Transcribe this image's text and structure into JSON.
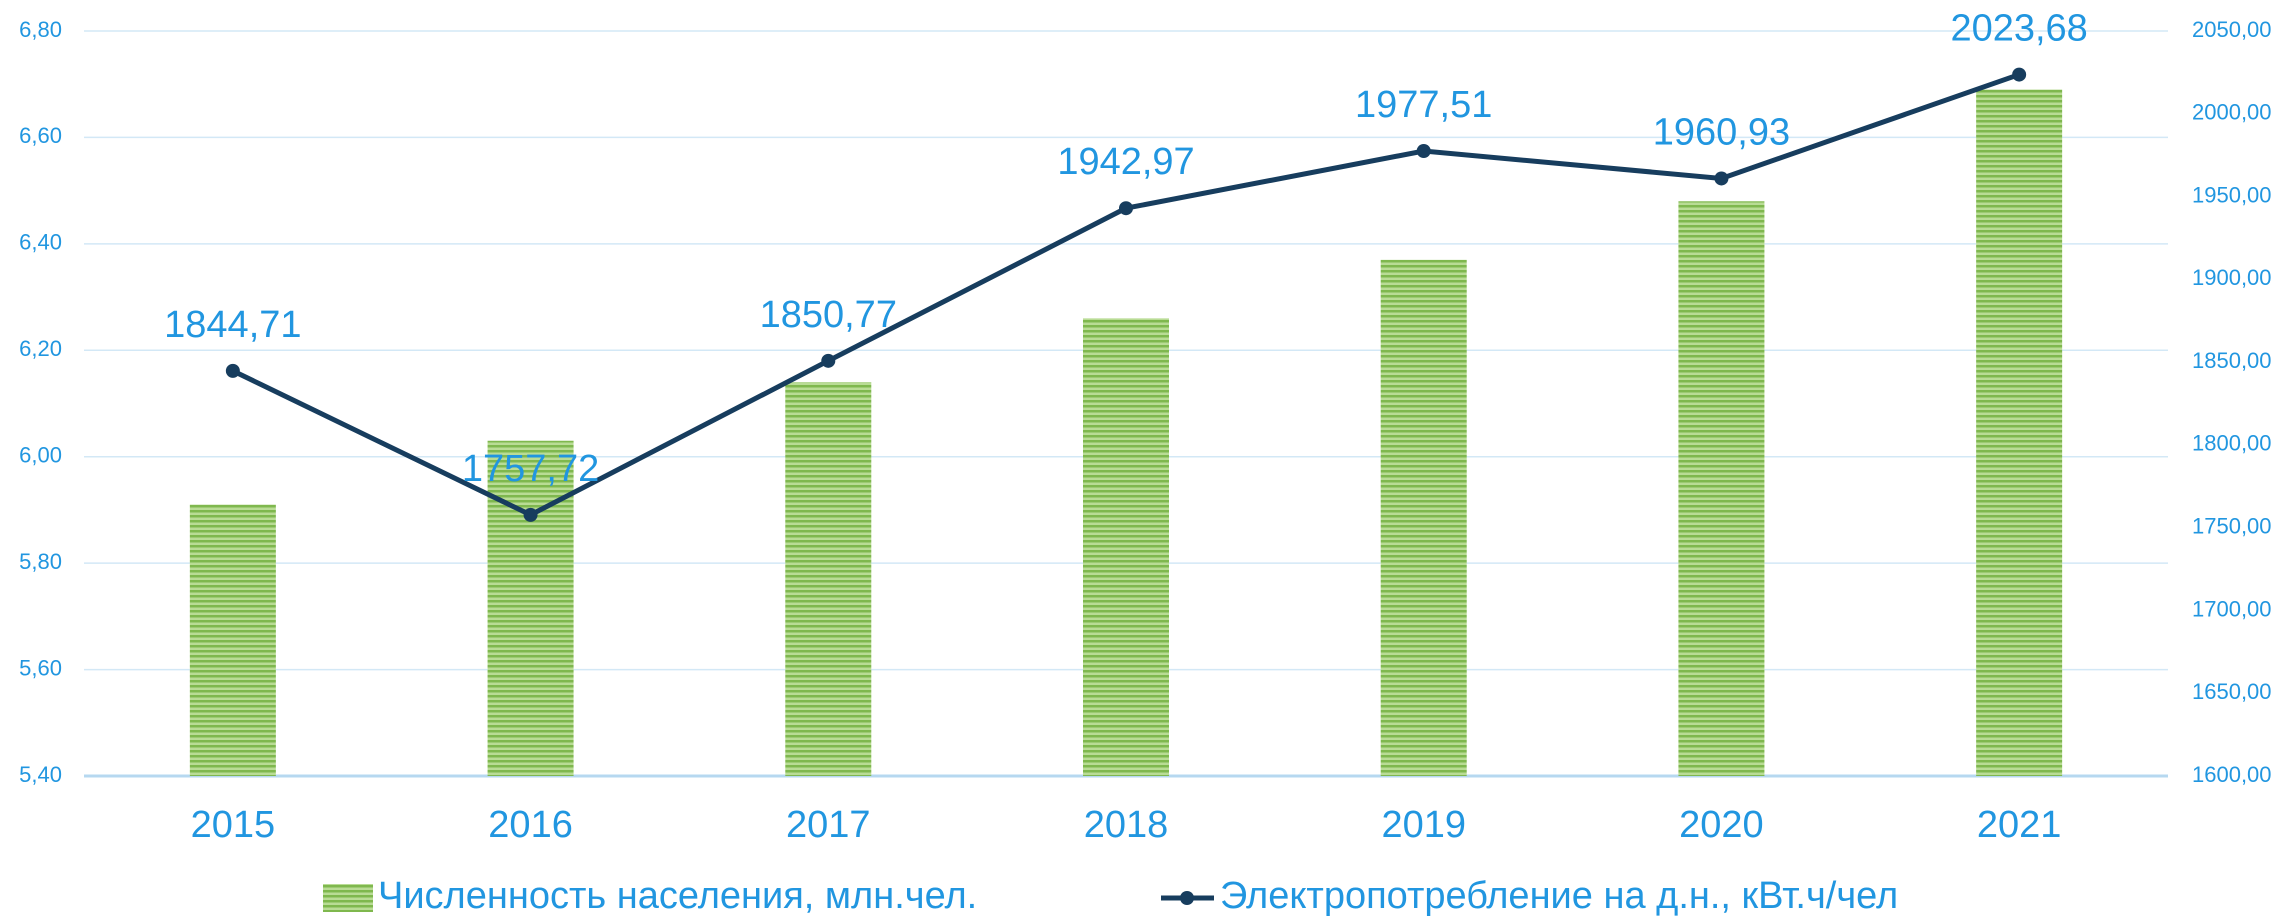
{
  "chart_data": {
    "type": "bar_line",
    "categories": [
      "2015",
      "2016",
      "2017",
      "2018",
      "2019",
      "2020",
      "2021"
    ],
    "series": [
      {
        "name": "Численность населения, млн.чел.",
        "color": "#8cc45a",
        "axis": "y",
        "type": "bar",
        "values": [
          5.91,
          6.03,
          6.14,
          6.26,
          6.37,
          6.48,
          6.69
        ]
      },
      {
        "name": "Электропотребление на д.н., кВт.ч/чел",
        "color": "#173d5e",
        "axis": "y2",
        "type": "line",
        "values": [
          1844.71,
          1757.72,
          1850.77,
          1942.97,
          1977.51,
          1960.93,
          2023.68
        ],
        "value_labels": [
          "1844,71",
          "1757,72",
          "1850,77",
          "1942,97",
          "1977,51",
          "1960,93",
          "2023,68"
        ]
      }
    ],
    "ylim": [
      5.4,
      6.8
    ],
    "yticks": [
      {
        "value": 5.4,
        "label": "5,40"
      },
      {
        "value": 5.6,
        "label": "5,60"
      },
      {
        "value": 5.8,
        "label": "5,80"
      },
      {
        "value": 6.0,
        "label": "6,00"
      },
      {
        "value": 6.2,
        "label": "6,20"
      },
      {
        "value": 6.4,
        "label": "6,40"
      },
      {
        "value": 6.6,
        "label": "6,60"
      },
      {
        "value": 6.8,
        "label": "6,80"
      }
    ],
    "y2lim": [
      1600,
      2050
    ],
    "y2ticks": [
      {
        "value": 1600,
        "label": "1600,00"
      },
      {
        "value": 1650,
        "label": "1650,00"
      },
      {
        "value": 1700,
        "label": "1700,00"
      },
      {
        "value": 1750,
        "label": "1750,00"
      },
      {
        "value": 1800,
        "label": "1800,00"
      },
      {
        "value": 1850,
        "label": "1850,00"
      },
      {
        "value": 1900,
        "label": "1900,00"
      },
      {
        "value": 1950,
        "label": "1950,00"
      },
      {
        "value": 2000,
        "label": "2000,00"
      },
      {
        "value": 2050,
        "label": "2050,00"
      }
    ],
    "grid": true,
    "legend": "bottom"
  }
}
